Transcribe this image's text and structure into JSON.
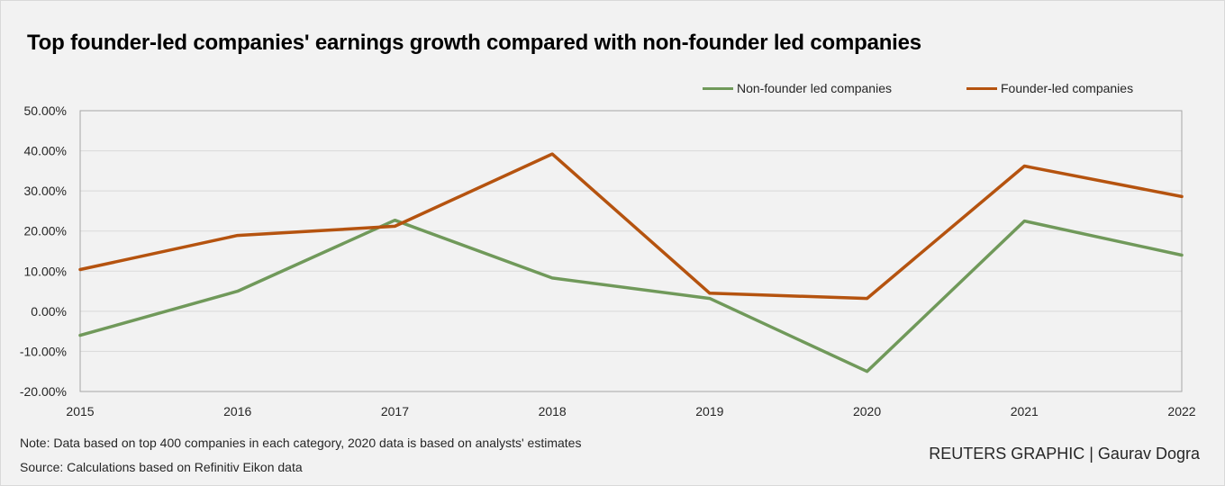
{
  "title": "Top founder-led companies' earnings growth compared with non-founder led companies",
  "note": "Note: Data based on top 400 companies in each category, 2020 data is based on analysts' estimates",
  "source": "Source: Calculations based on Refinitiv Eikon data",
  "credit": "REUTERS GRAPHIC | Gaurav Dogra",
  "chart_data": {
    "type": "line",
    "title": "Top founder-led companies' earnings growth compared with non-founder led companies",
    "xlabel": "",
    "ylabel": "",
    "x": [
      "2015",
      "2016",
      "2017",
      "2018",
      "2019",
      "2020",
      "2021",
      "2022"
    ],
    "ylim": [
      -20,
      50
    ],
    "yticks": [
      -20,
      -10,
      0,
      10,
      20,
      30,
      40,
      50
    ],
    "ytick_labels": [
      "-20.00%",
      "-10.00%",
      "0.00%",
      "10.00%",
      "20.00%",
      "30.00%",
      "40.00%",
      "50.00%"
    ],
    "grid": true,
    "legend_position": "top-right",
    "series": [
      {
        "name": "Non-founder led companies",
        "color": "#70995a",
        "values": [
          -6.0,
          5.0,
          22.7,
          8.3,
          3.2,
          -15.0,
          22.5,
          14.0
        ]
      },
      {
        "name": "Founder-led companies",
        "color": "#b5530f",
        "values": [
          10.4,
          18.9,
          21.2,
          39.2,
          4.5,
          3.2,
          36.2,
          28.6
        ]
      }
    ]
  }
}
